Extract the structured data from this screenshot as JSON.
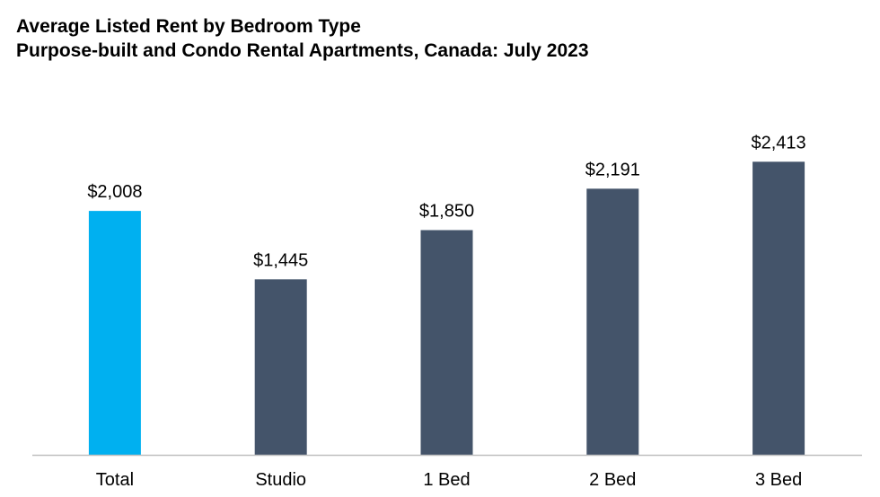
{
  "chart_data": {
    "type": "bar",
    "title": "Average Listed Rent by Bedroom Type",
    "subtitle": "Purpose-built and Condo Rental Apartments, Canada: July 2023",
    "categories": [
      "Total",
      "Studio",
      "1 Bed",
      "2 Bed",
      "3 Bed"
    ],
    "values": [
      2008,
      1445,
      1850,
      2191,
      2413
    ],
    "value_labels": [
      "$2,008",
      "$1,445",
      "$1,850",
      "$2,191",
      "$2,413"
    ],
    "bar_colors": [
      "#00B0F0",
      "#44546A",
      "#44546A",
      "#44546A",
      "#44546A"
    ],
    "axis_color": "#BFBFBF",
    "xlabel": "",
    "ylabel": "",
    "ylim": [
      0,
      2700
    ],
    "grid": false,
    "legend": "none"
  }
}
